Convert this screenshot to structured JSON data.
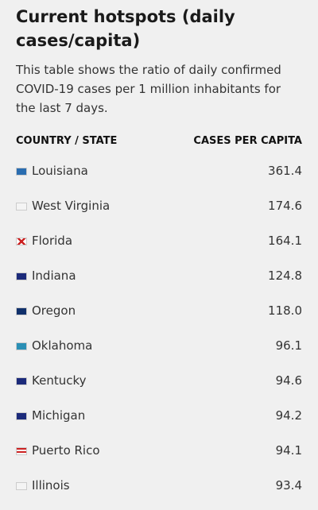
{
  "header": {
    "title": "Current hotspots (daily cases/capita)",
    "description": "This table shows the ratio of daily confirmed COVID-19 cases per 1 million inhabitants for the last 7 days."
  },
  "table": {
    "columns": [
      "COUNTRY / STATE",
      "CASES PER CAPITA"
    ],
    "rows": [
      [
        "Louisiana",
        "361.4"
      ],
      [
        "West Virginia",
        "174.6"
      ],
      [
        "Florida",
        "164.1"
      ],
      [
        "Indiana",
        "124.8"
      ],
      [
        "Oregon",
        "118.0"
      ],
      [
        "Oklahoma",
        "96.1"
      ],
      [
        "Kentucky",
        "94.6"
      ],
      [
        "Michigan",
        "94.2"
      ],
      [
        "Puerto Rico",
        "94.1"
      ],
      [
        "Illinois",
        "93.4"
      ]
    ]
  }
}
